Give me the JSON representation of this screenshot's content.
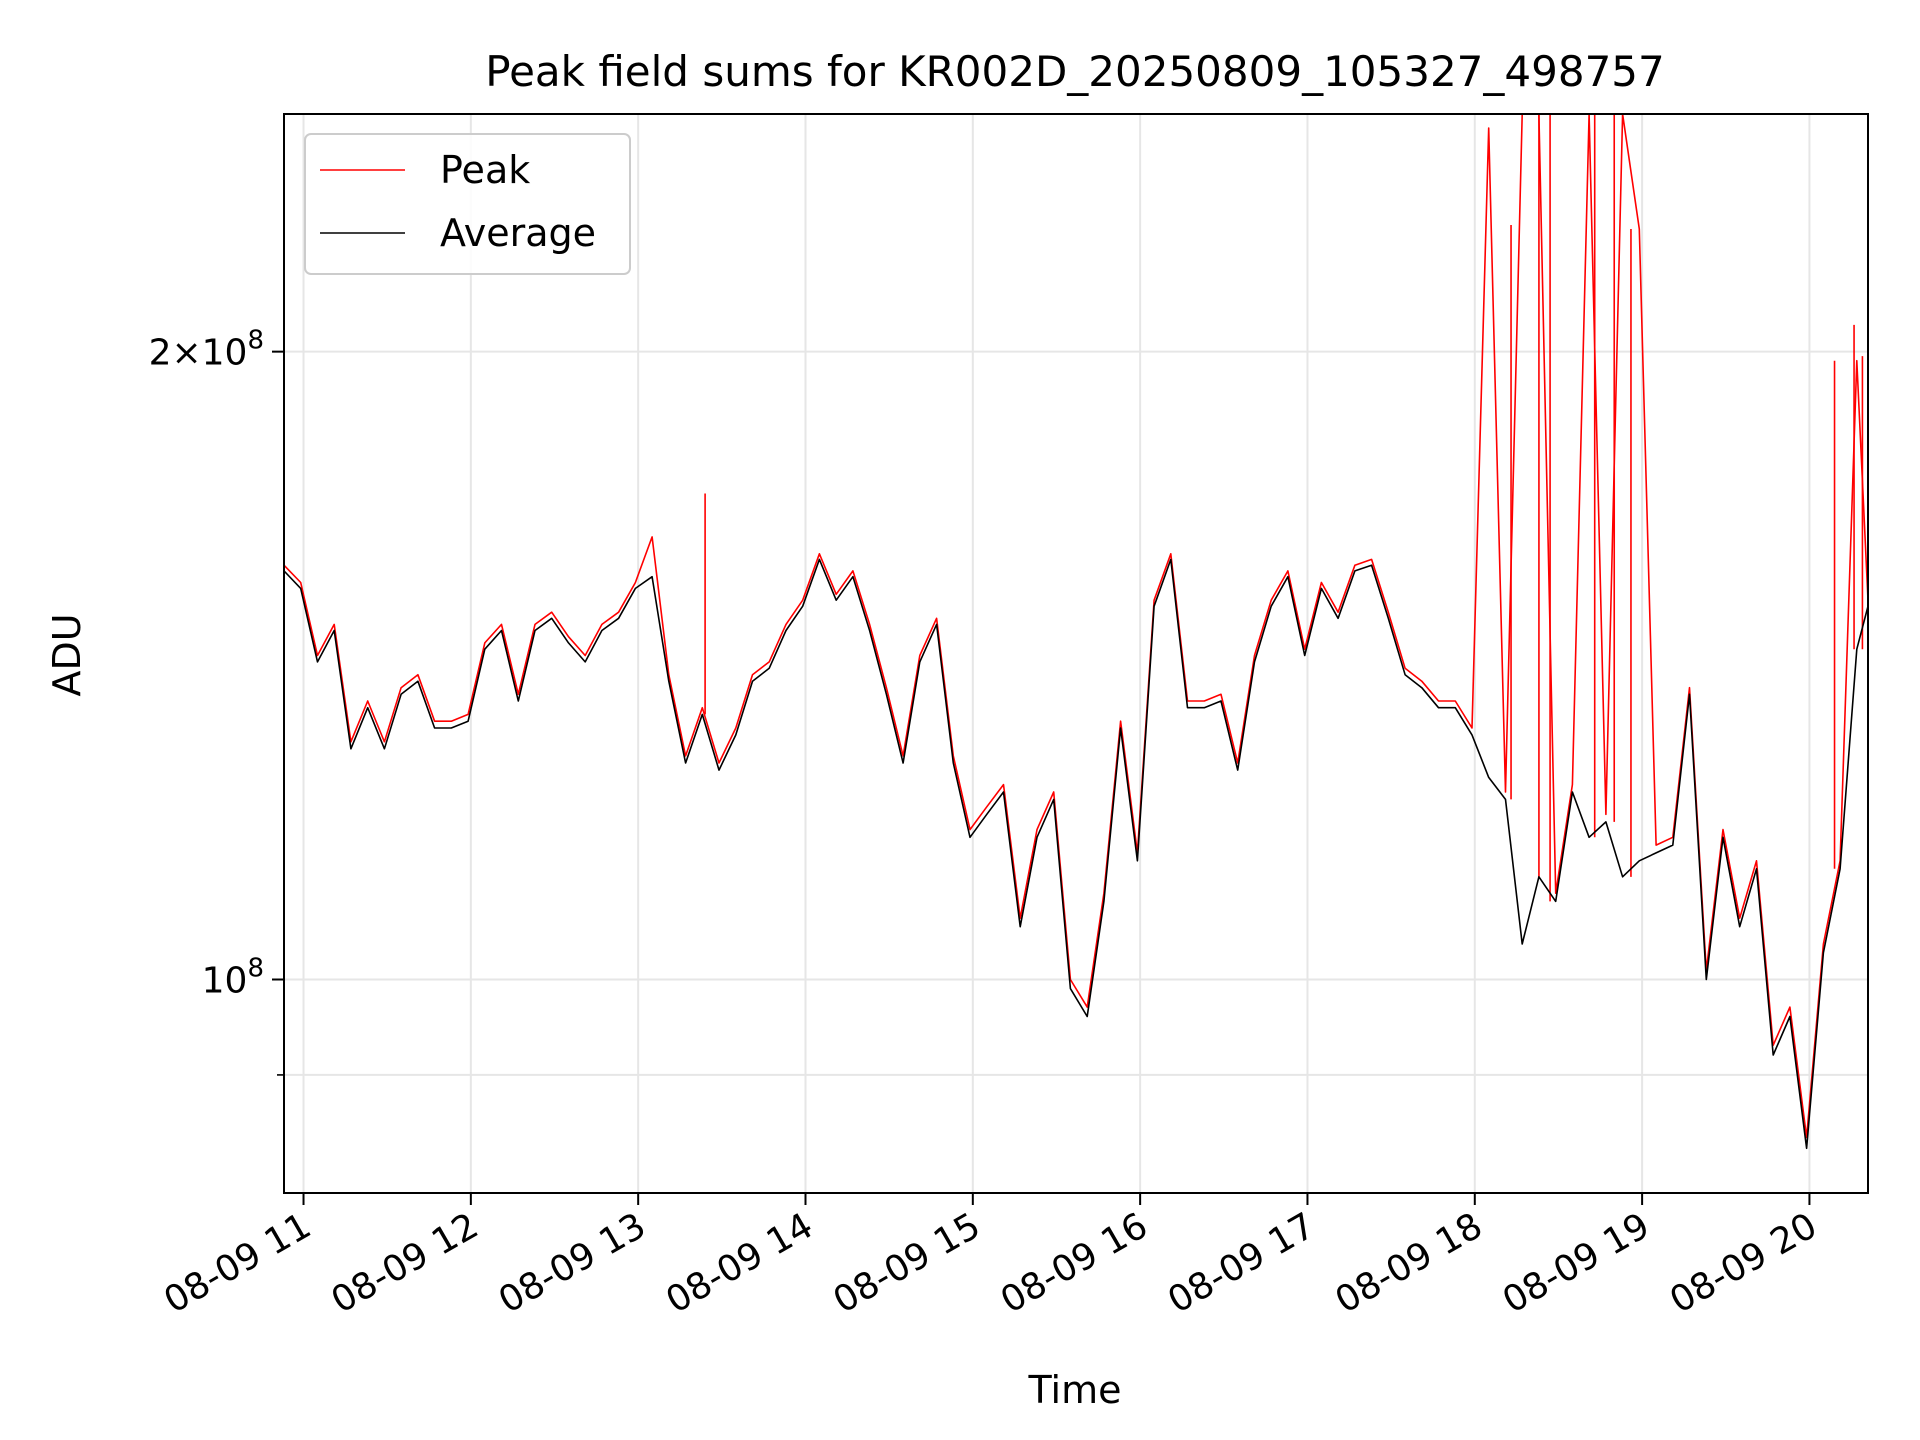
{
  "chart_data": {
    "type": "line",
    "title": "Peak field sums for KR002D_20250809_105327_498757",
    "xlabel": "Time",
    "ylabel": "ADU",
    "yscale": "log",
    "ylim": [
      79000000,
      260000000
    ],
    "xlim": [
      "2025-08-09 10:53",
      "2025-08-09 20:21"
    ],
    "x_ticks": [
      "08-09 11",
      "08-09 12",
      "08-09 13",
      "08-09 14",
      "08-09 15",
      "08-09 16",
      "08-09 17",
      "08-09 18",
      "08-09 19",
      "08-09 20"
    ],
    "y_major_ticks": [
      {
        "value": 100000000,
        "base": "10",
        "exp": "8",
        "mult": ""
      },
      {
        "value": 200000000,
        "base": "10",
        "exp": "8",
        "mult": "2×"
      }
    ],
    "y_minor_ticks": [
      90000000
    ],
    "grid": true,
    "legend": {
      "position": "upper-left",
      "entries": [
        "Peak",
        "Average"
      ]
    },
    "colors": {
      "peak": "#ff0000",
      "average": "#000000",
      "grid": "#e6e6e6"
    },
    "x": [
      "2025-08-09 10:53",
      "2025-08-09 10:59",
      "2025-08-09 11:05",
      "2025-08-09 11:11",
      "2025-08-09 11:17",
      "2025-08-09 11:23",
      "2025-08-09 11:29",
      "2025-08-09 11:35",
      "2025-08-09 11:41",
      "2025-08-09 11:47",
      "2025-08-09 11:53",
      "2025-08-09 11:59",
      "2025-08-09 12:05",
      "2025-08-09 12:11",
      "2025-08-09 12:17",
      "2025-08-09 12:23",
      "2025-08-09 12:29",
      "2025-08-09 12:35",
      "2025-08-09 12:41",
      "2025-08-09 12:47",
      "2025-08-09 12:53",
      "2025-08-09 12:59",
      "2025-08-09 13:05",
      "2025-08-09 13:11",
      "2025-08-09 13:17",
      "2025-08-09 13:23",
      "2025-08-09 13:29",
      "2025-08-09 13:35",
      "2025-08-09 13:41",
      "2025-08-09 13:47",
      "2025-08-09 13:53",
      "2025-08-09 13:59",
      "2025-08-09 14:05",
      "2025-08-09 14:11",
      "2025-08-09 14:17",
      "2025-08-09 14:23",
      "2025-08-09 14:29",
      "2025-08-09 14:35",
      "2025-08-09 14:41",
      "2025-08-09 14:47",
      "2025-08-09 14:53",
      "2025-08-09 14:59",
      "2025-08-09 15:05",
      "2025-08-09 15:11",
      "2025-08-09 15:17",
      "2025-08-09 15:23",
      "2025-08-09 15:29",
      "2025-08-09 15:35",
      "2025-08-09 15:41",
      "2025-08-09 15:47",
      "2025-08-09 15:53",
      "2025-08-09 15:59",
      "2025-08-09 16:05",
      "2025-08-09 16:11",
      "2025-08-09 16:17",
      "2025-08-09 16:23",
      "2025-08-09 16:29",
      "2025-08-09 16:35",
      "2025-08-09 16:41",
      "2025-08-09 16:47",
      "2025-08-09 16:53",
      "2025-08-09 16:59",
      "2025-08-09 17:05",
      "2025-08-09 17:11",
      "2025-08-09 17:17",
      "2025-08-09 17:23",
      "2025-08-09 17:29",
      "2025-08-09 17:35",
      "2025-08-09 17:41",
      "2025-08-09 17:47",
      "2025-08-09 17:53",
      "2025-08-09 17:59",
      "2025-08-09 18:05",
      "2025-08-09 18:11",
      "2025-08-09 18:17",
      "2025-08-09 18:23",
      "2025-08-09 18:29",
      "2025-08-09 18:35",
      "2025-08-09 18:41",
      "2025-08-09 18:47",
      "2025-08-09 18:53",
      "2025-08-09 18:59",
      "2025-08-09 19:05",
      "2025-08-09 19:11",
      "2025-08-09 19:17",
      "2025-08-09 19:23",
      "2025-08-09 19:29",
      "2025-08-09 19:35",
      "2025-08-09 19:41",
      "2025-08-09 19:47",
      "2025-08-09 19:53",
      "2025-08-09 19:59",
      "2025-08-09 20:05",
      "2025-08-09 20:11",
      "2025-08-09 20:17",
      "2025-08-09 20:21"
    ],
    "series": [
      {
        "name": "Peak",
        "values": [
          158000000,
          155000000,
          143000000,
          148000000,
          130000000,
          136000000,
          130000000,
          138000000,
          140000000,
          133000000,
          133000000,
          134000000,
          145000000,
          148000000,
          137000000,
          148000000,
          150000000,
          146000000,
          143000000,
          148000000,
          150000000,
          155000000,
          163000000,
          140000000,
          128000000,
          135000000,
          127000000,
          132000000,
          140000000,
          142000000,
          148000000,
          152000000,
          160000000,
          153000000,
          157000000,
          148000000,
          138000000,
          128000000,
          143000000,
          149000000,
          128000000,
          118000000,
          121000000,
          124000000,
          107000000,
          118000000,
          123000000,
          100000000,
          97000000,
          110000000,
          133000000,
          115000000,
          152000000,
          160000000,
          136000000,
          136000000,
          137000000,
          127000000,
          143000000,
          152000000,
          157000000,
          144000000,
          155000000,
          150000000,
          158000000,
          159000000,
          150000000,
          141000000,
          139000000,
          136000000,
          136000000,
          132000000,
          256000000,
          123000000,
          260000000,
          260000000,
          110000000,
          124000000,
          260000000,
          120000000,
          260000000,
          229000000,
          116000000,
          117000000,
          138000000,
          101000000,
          118000000,
          107000000,
          114000000,
          93000000,
          97000000,
          84000000,
          104000000,
          114000000,
          198000000,
          152000000
        ],
        "spikes": [
          {
            "x": "2025-08-09 18:13",
            "value": 230000000
          },
          {
            "x": "2025-08-09 18:23",
            "value": 260000000
          },
          {
            "x": "2025-08-09 18:27",
            "value": 260000000
          },
          {
            "x": "2025-08-09 18:43",
            "value": 260000000
          },
          {
            "x": "2025-08-09 18:50",
            "value": 260000000
          },
          {
            "x": "2025-08-09 18:56",
            "value": 229000000
          },
          {
            "x": "2025-08-09 20:09",
            "value": 198000000
          },
          {
            "x": "2025-08-09 20:16",
            "value": 206000000
          },
          {
            "x": "2025-08-09 20:19",
            "value": 199000000
          },
          {
            "x": "2025-08-09 13:24",
            "value": 171000000
          }
        ]
      },
      {
        "name": "Average",
        "values": [
          157000000,
          154000000,
          142000000,
          147000000,
          129000000,
          135000000,
          129000000,
          137000000,
          139000000,
          132000000,
          132000000,
          133000000,
          144000000,
          147000000,
          136000000,
          147000000,
          149000000,
          145000000,
          142000000,
          147000000,
          149000000,
          154000000,
          156000000,
          139000000,
          127000000,
          134000000,
          126000000,
          131000000,
          139000000,
          141000000,
          147000000,
          151000000,
          159000000,
          152000000,
          156000000,
          147000000,
          137000000,
          127000000,
          142000000,
          148000000,
          127000000,
          117000000,
          120000000,
          123000000,
          106000000,
          117000000,
          122000000,
          99000000,
          96000000,
          109000000,
          132000000,
          114000000,
          151000000,
          159000000,
          135000000,
          135000000,
          136000000,
          126000000,
          142000000,
          151000000,
          156000000,
          143000000,
          154000000,
          149000000,
          157000000,
          158000000,
          149000000,
          140000000,
          138000000,
          135000000,
          135000000,
          131000000,
          125000000,
          122000000,
          104000000,
          112000000,
          109000000,
          123000000,
          117000000,
          119000000,
          112000000,
          114000000,
          115000000,
          116000000,
          137000000,
          100000000,
          117000000,
          106000000,
          113000000,
          92000000,
          96000000,
          83000000,
          103000000,
          113000000,
          144000000,
          151000000
        ]
      }
    ]
  }
}
